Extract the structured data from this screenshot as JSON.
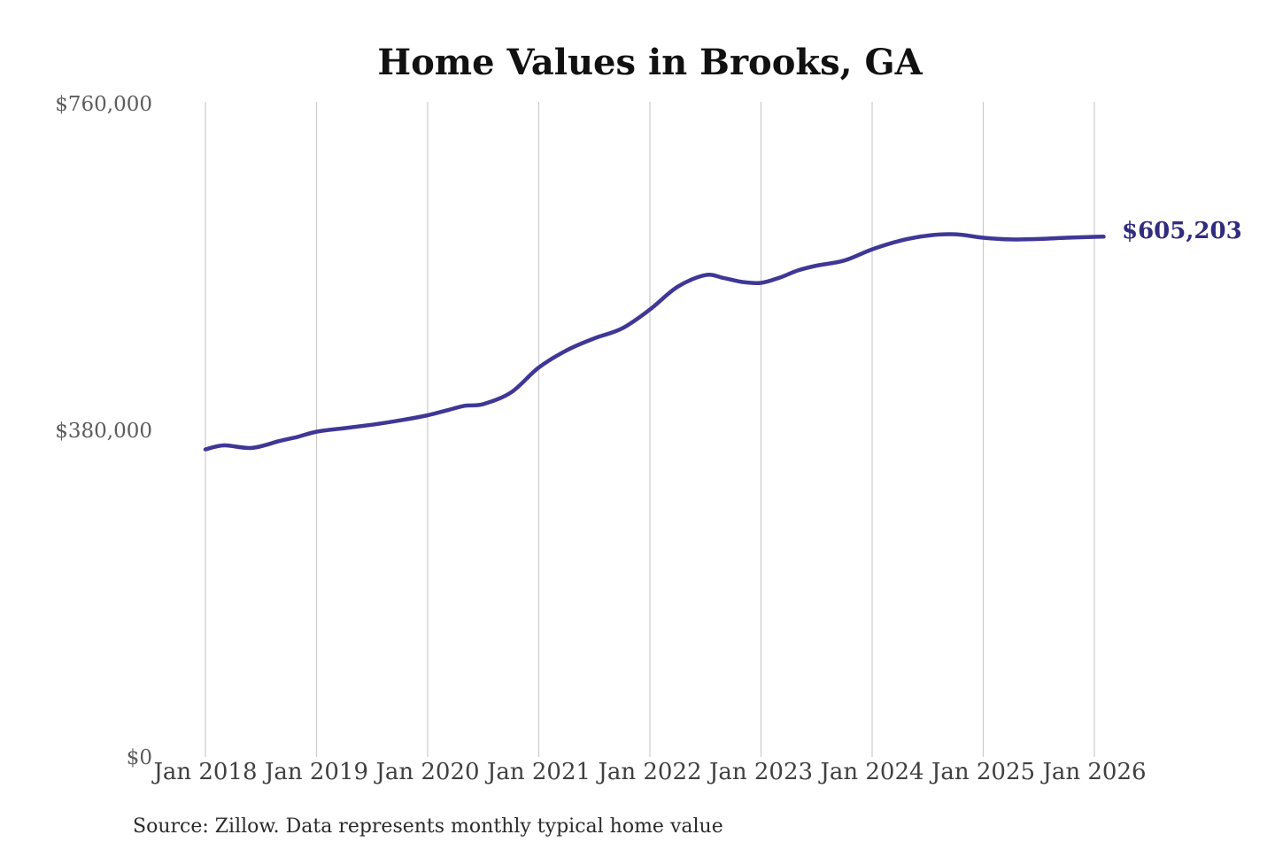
{
  "chart_data": {
    "type": "line",
    "title": "Home Values in Brooks, GA",
    "source_note": "Source: Zillow. Data represents monthly typical home value",
    "end_label": "$605,203",
    "end_value": 605203,
    "x_start_label": "Jan 2018",
    "x_tick_labels": [
      "Jan 2018",
      "Jan 2019",
      "Jan 2020",
      "Jan 2021",
      "Jan 2022",
      "Jan 2023",
      "Jan 2024",
      "Jan 2025",
      "Jan 2026"
    ],
    "y_ticks": [
      {
        "label": "$0",
        "value": 0
      },
      {
        "label": "$380,000",
        "value": 380000
      },
      {
        "label": "$760,000",
        "value": 760000
      }
    ],
    "ylim": [
      0,
      760000
    ],
    "xlabel": "",
    "ylabel": "",
    "legend": "none",
    "grid": "vertical-only",
    "x_unit": "months since Jan 2018 (12 per year)",
    "series_name": "Typical home value",
    "points": [
      [
        0,
        357800
      ],
      [
        2,
        362500
      ],
      [
        5,
        359500
      ],
      [
        8,
        367500
      ],
      [
        10,
        372500
      ],
      [
        12,
        378400
      ],
      [
        15,
        382500
      ],
      [
        18,
        386500
      ],
      [
        21,
        391500
      ],
      [
        24,
        397500
      ],
      [
        26,
        403000
      ],
      [
        28,
        408500
      ],
      [
        30,
        410500
      ],
      [
        33,
        424000
      ],
      [
        36,
        453000
      ],
      [
        39,
        473000
      ],
      [
        42,
        487000
      ],
      [
        45,
        498500
      ],
      [
        48,
        520500
      ],
      [
        51,
        547000
      ],
      [
        54,
        560500
      ],
      [
        56,
        557000
      ],
      [
        58,
        552500
      ],
      [
        60,
        551500
      ],
      [
        62,
        557500
      ],
      [
        64,
        566000
      ],
      [
        66,
        571500
      ],
      [
        69,
        577500
      ],
      [
        72,
        590500
      ],
      [
        75,
        600500
      ],
      [
        78,
        606500
      ],
      [
        81,
        608000
      ],
      [
        84,
        604000
      ],
      [
        87,
        602000
      ],
      [
        90,
        602500
      ],
      [
        93,
        604000
      ],
      [
        96,
        605000
      ],
      [
        97,
        605203
      ]
    ],
    "colors": {
      "line": "#3F3796",
      "end_label": "#322C7D",
      "grid": "#CBCBCB",
      "title": "#111111",
      "background": "#FFFFFF"
    }
  }
}
